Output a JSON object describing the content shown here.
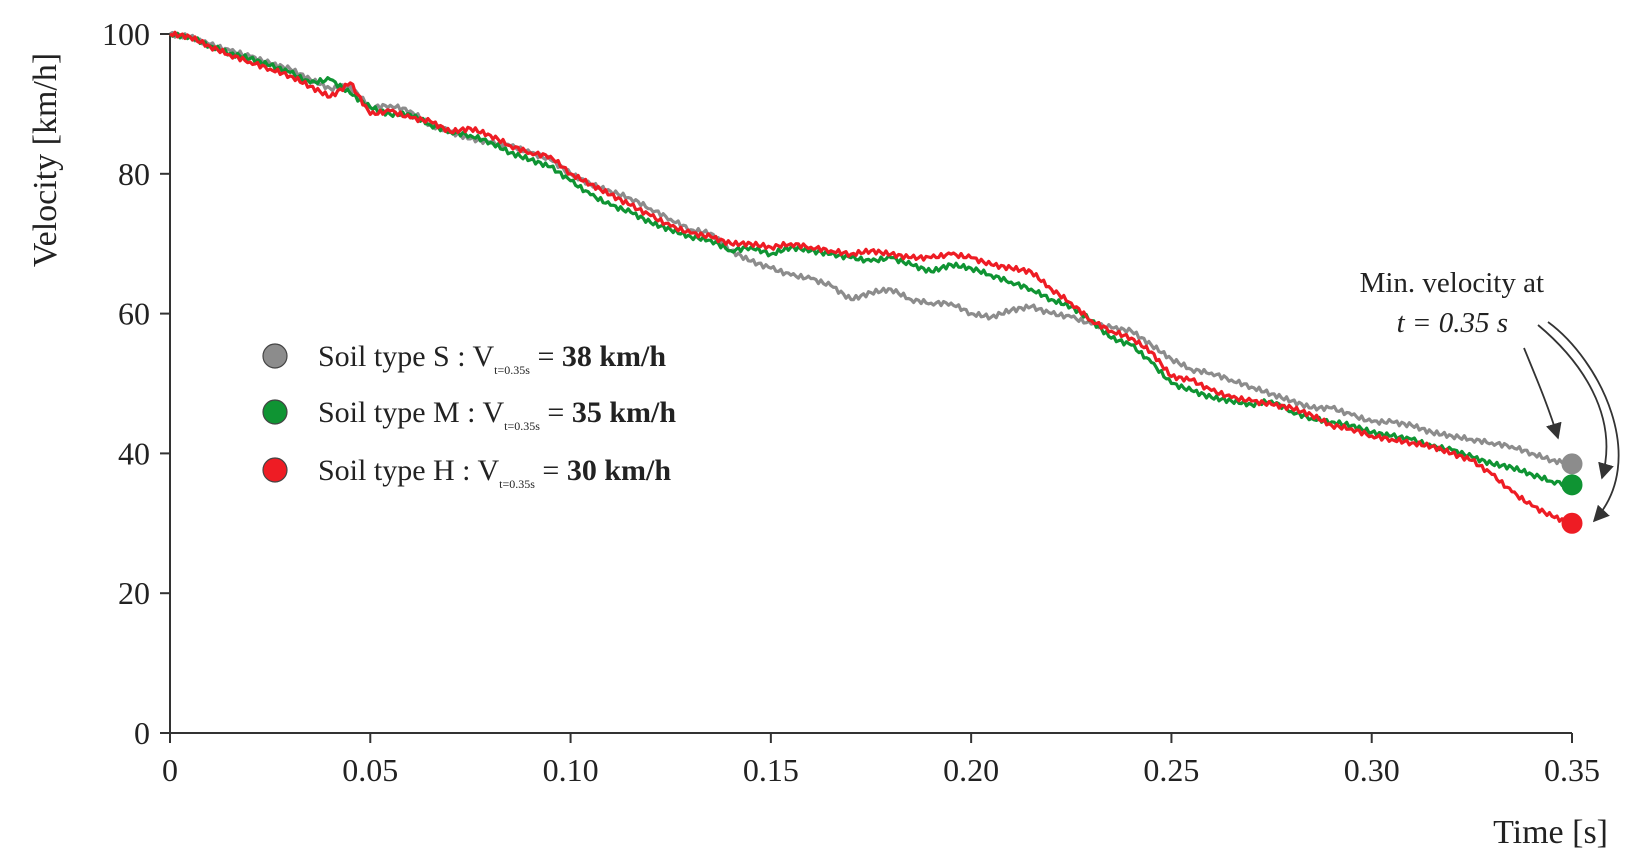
{
  "chart_data": {
    "type": "line",
    "title": "",
    "xlabel": "Time [s]",
    "ylabel": "Velocity [km/h]",
    "xlim": [
      0,
      0.35
    ],
    "ylim": [
      0,
      100
    ],
    "x_ticks": [
      0,
      0.05,
      0.1,
      0.15,
      0.2,
      0.25,
      0.3,
      0.35
    ],
    "x_tick_labels": [
      "0",
      "0.05",
      "0.10",
      "0.15",
      "0.20",
      "0.25",
      "0.30",
      "0.35"
    ],
    "y_ticks": [
      0,
      20,
      40,
      60,
      80,
      100
    ],
    "y_tick_labels": [
      "0",
      "20",
      "40",
      "60",
      "80",
      "100"
    ],
    "grid": false,
    "legend_position": "center-left",
    "series": [
      {
        "name": "Soil type S",
        "color": "#8c8c8c",
        "legend_prefix": "Soil type S  : V",
        "legend_subscript": "t=0.35s",
        "legend_eq": " = ",
        "legend_value": "38 km/h",
        "x": [
          0,
          0.005,
          0.01,
          0.015,
          0.02,
          0.025,
          0.03,
          0.035,
          0.04,
          0.045,
          0.05,
          0.055,
          0.06,
          0.065,
          0.07,
          0.075,
          0.08,
          0.085,
          0.09,
          0.095,
          0.1,
          0.105,
          0.11,
          0.115,
          0.12,
          0.125,
          0.13,
          0.135,
          0.14,
          0.145,
          0.15,
          0.155,
          0.16,
          0.165,
          0.17,
          0.175,
          0.18,
          0.185,
          0.19,
          0.195,
          0.2,
          0.205,
          0.21,
          0.215,
          0.22,
          0.225,
          0.23,
          0.235,
          0.24,
          0.245,
          0.25,
          0.255,
          0.26,
          0.265,
          0.27,
          0.275,
          0.28,
          0.285,
          0.29,
          0.295,
          0.3,
          0.305,
          0.31,
          0.315,
          0.32,
          0.325,
          0.33,
          0.335,
          0.34,
          0.345,
          0.35
        ],
        "values": [
          100,
          99.6,
          98.5,
          97.6,
          96.8,
          95.8,
          95.0,
          93.5,
          92.2,
          92.5,
          89.5,
          89.8,
          89.0,
          87.0,
          86.0,
          85.0,
          84.5,
          84.0,
          83.0,
          82.0,
          80.0,
          78.5,
          77.5,
          76.5,
          75.0,
          73.5,
          72.0,
          71.5,
          69.0,
          67.5,
          66.5,
          65.5,
          65.0,
          64.0,
          62.0,
          63.0,
          63.5,
          62.0,
          61.5,
          61.5,
          60.0,
          59.5,
          60.5,
          61.0,
          60.0,
          59.5,
          58.5,
          58.0,
          57.5,
          55.5,
          53.5,
          52.0,
          51.5,
          50.5,
          49.5,
          48.5,
          47.5,
          46.5,
          46.5,
          45.5,
          44.5,
          44.5,
          44.0,
          43.0,
          42.5,
          42.0,
          41.5,
          41.0,
          40.0,
          39.0,
          38.5
        ]
      },
      {
        "name": "Soil type M",
        "color": "#0f9433",
        "legend_prefix": "Soil type M : V",
        "legend_subscript": "t=0.35s",
        "legend_eq": " = ",
        "legend_value": "35 km/h",
        "x": [
          0,
          0.005,
          0.01,
          0.015,
          0.02,
          0.025,
          0.03,
          0.035,
          0.04,
          0.045,
          0.05,
          0.055,
          0.06,
          0.065,
          0.07,
          0.075,
          0.08,
          0.085,
          0.09,
          0.095,
          0.1,
          0.105,
          0.11,
          0.115,
          0.12,
          0.125,
          0.13,
          0.135,
          0.14,
          0.145,
          0.15,
          0.155,
          0.16,
          0.165,
          0.17,
          0.175,
          0.18,
          0.185,
          0.19,
          0.195,
          0.2,
          0.205,
          0.21,
          0.215,
          0.22,
          0.225,
          0.23,
          0.235,
          0.24,
          0.245,
          0.25,
          0.255,
          0.26,
          0.265,
          0.27,
          0.275,
          0.28,
          0.285,
          0.29,
          0.295,
          0.3,
          0.305,
          0.31,
          0.315,
          0.32,
          0.325,
          0.33,
          0.335,
          0.34,
          0.345,
          0.35
        ],
        "values": [
          100,
          99.6,
          98.3,
          97.2,
          96.5,
          95.5,
          94.5,
          93.0,
          93.5,
          91.5,
          89.5,
          88.5,
          88.5,
          87.0,
          86.0,
          85.5,
          84.5,
          83.0,
          82.0,
          81.0,
          79.0,
          77.0,
          75.5,
          74.5,
          73.0,
          72.0,
          71.0,
          70.5,
          69.0,
          69.5,
          68.5,
          69.5,
          69.0,
          68.5,
          68.0,
          67.5,
          68.0,
          67.0,
          66.0,
          67.0,
          66.5,
          65.5,
          64.5,
          63.5,
          62.0,
          61.0,
          59.0,
          56.5,
          55.5,
          53.0,
          50.0,
          49.0,
          48.0,
          47.5,
          47.0,
          47.5,
          46.0,
          45.0,
          44.5,
          44.0,
          43.0,
          42.5,
          42.0,
          41.0,
          40.5,
          39.5,
          38.5,
          38.0,
          37.0,
          36.0,
          35.5
        ]
      },
      {
        "name": "Soil type H",
        "color": "#ee1c24",
        "legend_prefix": "Soil type H : V",
        "legend_subscript": "t=0.35s",
        "legend_eq": " = ",
        "legend_value": "30 km/h",
        "x": [
          0,
          0.005,
          0.01,
          0.015,
          0.02,
          0.025,
          0.03,
          0.035,
          0.04,
          0.045,
          0.05,
          0.055,
          0.06,
          0.065,
          0.07,
          0.075,
          0.08,
          0.085,
          0.09,
          0.095,
          0.1,
          0.105,
          0.11,
          0.115,
          0.12,
          0.125,
          0.13,
          0.135,
          0.14,
          0.145,
          0.15,
          0.155,
          0.16,
          0.165,
          0.17,
          0.175,
          0.18,
          0.185,
          0.19,
          0.195,
          0.2,
          0.205,
          0.21,
          0.215,
          0.22,
          0.225,
          0.23,
          0.235,
          0.24,
          0.245,
          0.25,
          0.255,
          0.26,
          0.265,
          0.27,
          0.275,
          0.28,
          0.285,
          0.29,
          0.295,
          0.3,
          0.305,
          0.31,
          0.315,
          0.32,
          0.325,
          0.33,
          0.335,
          0.34,
          0.345,
          0.35
        ],
        "values": [
          100,
          99.6,
          98.2,
          97.0,
          96.0,
          95.0,
          94.0,
          92.5,
          91.0,
          93.0,
          88.5,
          89.0,
          88.0,
          87.5,
          86.0,
          86.5,
          85.5,
          84.0,
          83.0,
          82.5,
          80.0,
          78.5,
          77.0,
          75.5,
          74.0,
          72.5,
          71.5,
          71.0,
          70.0,
          70.0,
          69.5,
          70.0,
          69.5,
          69.0,
          68.5,
          69.0,
          68.5,
          68.0,
          68.0,
          68.5,
          68.0,
          67.0,
          66.5,
          66.0,
          63.5,
          61.5,
          59.0,
          57.5,
          56.5,
          54.5,
          51.0,
          50.5,
          49.0,
          48.0,
          47.5,
          47.0,
          46.5,
          45.5,
          44.0,
          43.5,
          42.5,
          42.0,
          41.5,
          41.0,
          40.0,
          39.0,
          37.0,
          34.5,
          32.5,
          31.0,
          30.0
        ]
      }
    ],
    "endpoints": [
      {
        "series": "Soil type S",
        "x": 0.35,
        "y": 38.5
      },
      {
        "series": "Soil type M",
        "x": 0.35,
        "y": 35.5
      },
      {
        "series": "Soil type H",
        "x": 0.35,
        "y": 30.0
      }
    ],
    "annotation": {
      "line1": "Min. velocity at",
      "line2": "t = 0.35 s"
    }
  }
}
